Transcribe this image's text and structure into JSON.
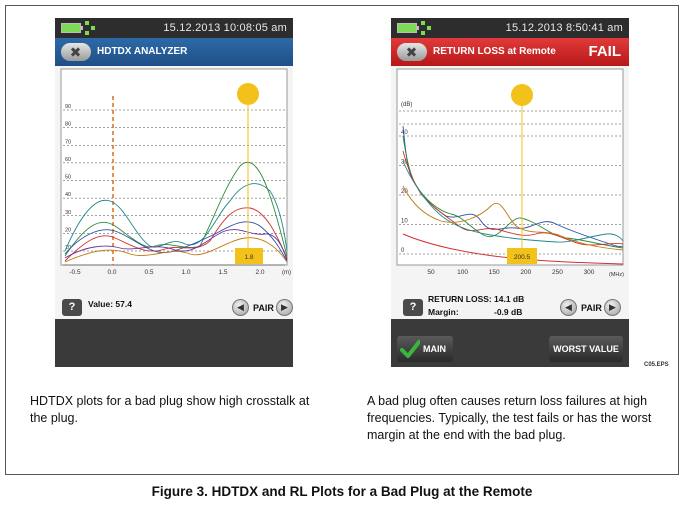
{
  "left_device": {
    "datetime": "15.12.2013 10:08:05 am",
    "title": "HDTDX ANALYZER",
    "y_ticks": [
      "90",
      "80",
      "70",
      "60",
      "50",
      "40",
      "30",
      "20",
      "10"
    ],
    "x_ticks": [
      "-0.5",
      "0.0",
      "0.5",
      "1.0",
      "1.5",
      "2.0"
    ],
    "x_unit": "(m)",
    "cursor_value": "1.8",
    "value_text": "Value: 57.4",
    "pair_label": "PAIR",
    "help_label": "?"
  },
  "right_device": {
    "datetime": "15.12.2013 8:50:41 am",
    "title": "RETURN LOSS at Remote",
    "status": "FAIL",
    "y_unit": "(dB)",
    "y_ticks": [
      "40",
      "30",
      "20",
      "10",
      "0"
    ],
    "x_ticks": [
      "50",
      "100",
      "150",
      "200",
      "250",
      "300"
    ],
    "x_unit": "(MHz)",
    "cursor_value": "200.5",
    "return_loss_label": "RETURN LOSS:",
    "return_loss_value": "14.1 dB",
    "margin_label": "Margin:",
    "margin_value": "-0.9 dB",
    "pair_label": "PAIR",
    "help_label": "?",
    "main_button": "MAIN",
    "worst_button": "WORST VALUE"
  },
  "captions": {
    "left": "HDTDX plots for a bad plug show high crosstalk at the plug.",
    "right": "A bad plug often causes return loss failures at high frequencies. Typically, the test fails or has the worst margin at the end with the bad plug."
  },
  "eps_label": "C05.EPS",
  "figure_caption": "Figure 3. HDTDX and RL Plots for a Bad Plug at the Remote",
  "colors": {
    "blue_title": "#1f4f86",
    "red_title": "#c41f1f",
    "cursor": "#f2c21b",
    "green_check": "#3cb43c",
    "limit_line": "#d63030"
  }
}
